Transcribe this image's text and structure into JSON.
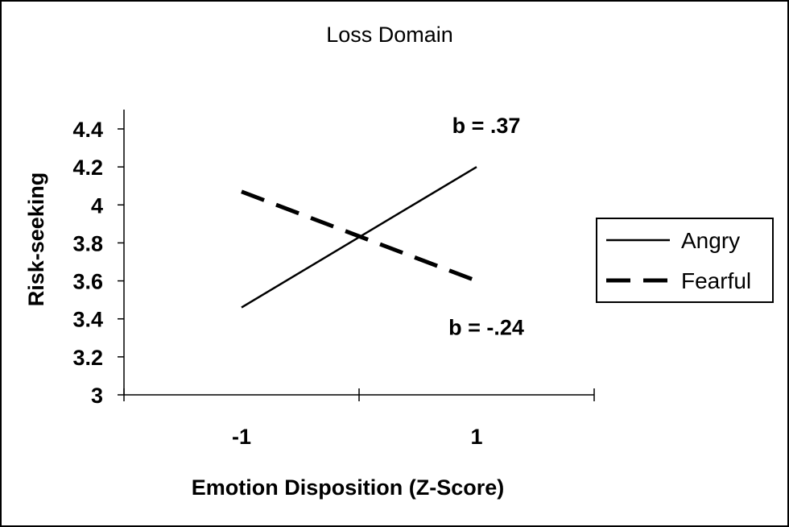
{
  "chart_data": {
    "type": "line",
    "title": "Loss Domain",
    "xlabel": "Emotion Disposition (Z-Score)",
    "ylabel": "Risk-seeking",
    "categories": [
      "-1",
      "1"
    ],
    "x": [
      -1,
      1
    ],
    "ylim": [
      3,
      4.4
    ],
    "y_ticks": [
      3,
      3.2,
      3.4,
      3.6,
      3.8,
      4,
      4.2,
      4.4
    ],
    "y_tick_labels": [
      "3",
      "3.2",
      "3.4",
      "3.6",
      "3.8",
      "4",
      "4.2",
      "4.4"
    ],
    "grid": false,
    "legend": "right",
    "series": [
      {
        "name": "Angry",
        "values": [
          3.46,
          4.2
        ],
        "style": "solid",
        "color": "#000000",
        "annotation": "b = .37"
      },
      {
        "name": "Fearful",
        "values": [
          4.07,
          3.6
        ],
        "style": "dashed",
        "color": "#000000",
        "annotation": "b = -.24"
      }
    ]
  }
}
